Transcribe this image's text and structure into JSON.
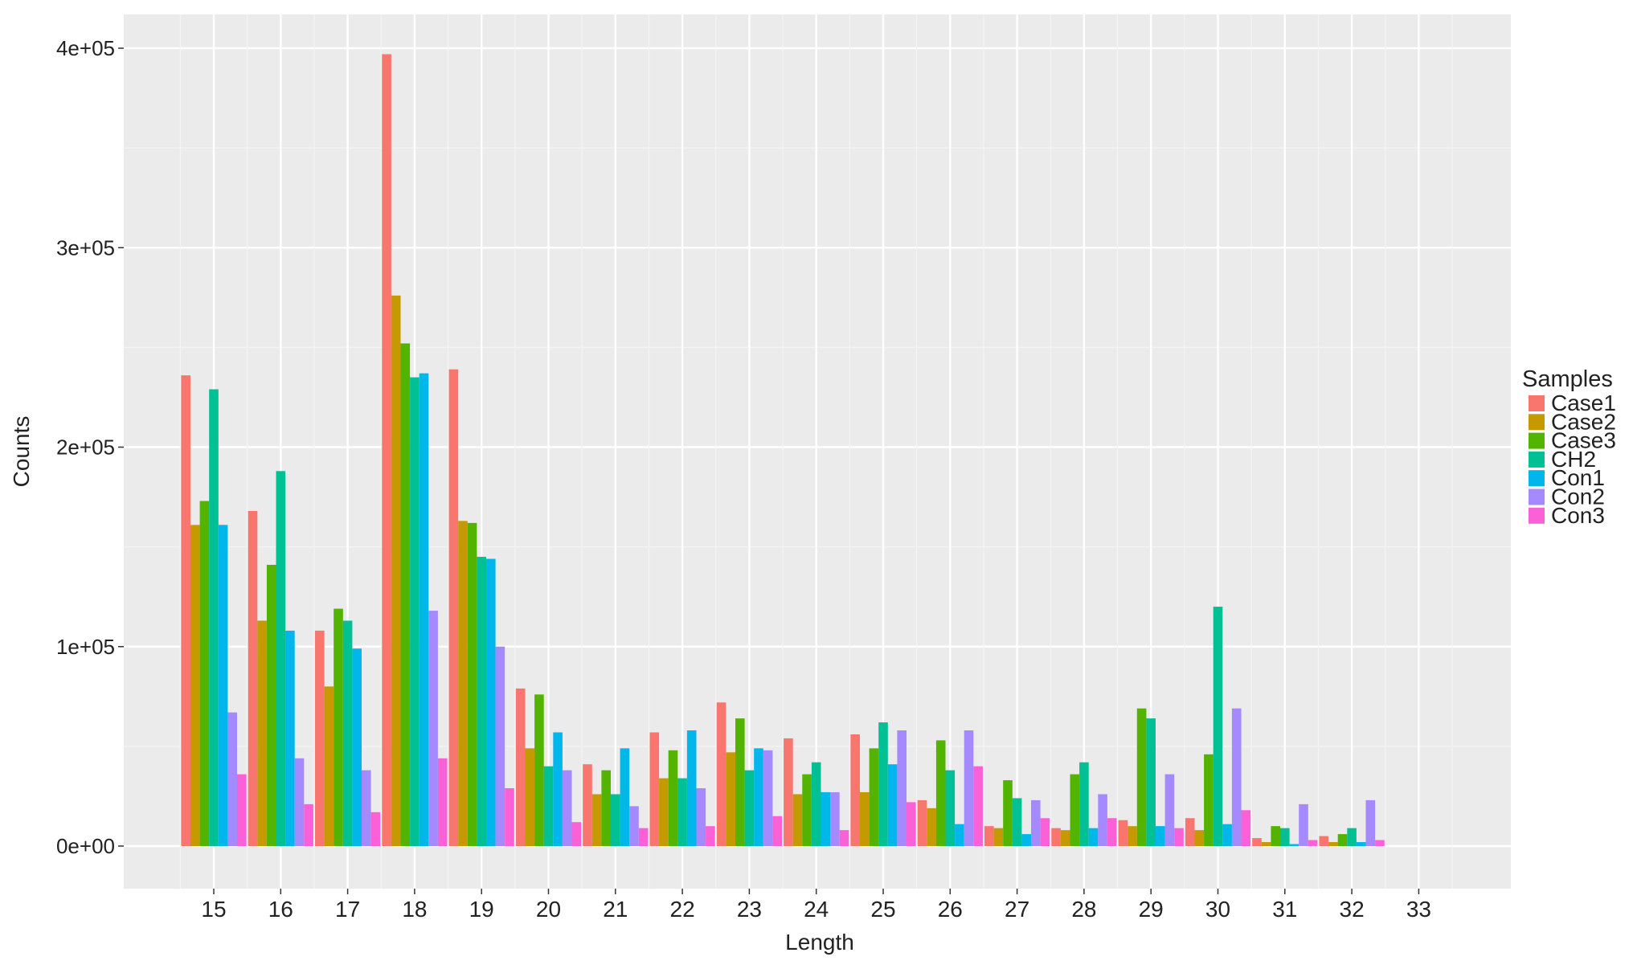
{
  "chart_data": {
    "type": "bar",
    "xlabel": "Length",
    "ylabel": "Counts",
    "legend_title": "Samples",
    "legend_position": "right",
    "grid": true,
    "ylim": [
      -20000,
      415000
    ],
    "yticks": [
      0,
      100000,
      200000,
      300000,
      400000
    ],
    "ytick_labels": [
      "0e+00",
      "1e+05",
      "2e+05",
      "3e+05",
      "4e+05"
    ],
    "categories": [
      "15",
      "16",
      "17",
      "18",
      "19",
      "20",
      "21",
      "22",
      "23",
      "24",
      "25",
      "26",
      "27",
      "28",
      "29",
      "30",
      "31",
      "32",
      "33"
    ],
    "series": [
      {
        "name": "Case1",
        "color": "#F8766D",
        "values": [
          236000,
          168000,
          108000,
          397000,
          239000,
          79000,
          41000,
          57000,
          72000,
          54000,
          56000,
          23000,
          10000,
          9000,
          13000,
          14000,
          4000,
          5000,
          0
        ]
      },
      {
        "name": "Case2",
        "color": "#C49A00",
        "values": [
          161000,
          113000,
          80000,
          276000,
          163000,
          49000,
          26000,
          34000,
          47000,
          26000,
          27000,
          19000,
          9000,
          8000,
          10000,
          8000,
          2000,
          2000,
          0
        ]
      },
      {
        "name": "Case3",
        "color": "#53B400",
        "values": [
          173000,
          141000,
          119000,
          252000,
          162000,
          76000,
          38000,
          48000,
          64000,
          36000,
          49000,
          53000,
          33000,
          36000,
          69000,
          46000,
          10000,
          6000,
          0
        ]
      },
      {
        "name": "CH2",
        "color": "#00C094",
        "values": [
          229000,
          188000,
          113000,
          235000,
          145000,
          40000,
          26000,
          34000,
          38000,
          42000,
          62000,
          38000,
          24000,
          42000,
          64000,
          120000,
          9000,
          9000,
          0
        ]
      },
      {
        "name": "Con1",
        "color": "#00B6EB",
        "values": [
          161000,
          108000,
          99000,
          237000,
          144000,
          57000,
          49000,
          58000,
          49000,
          27000,
          41000,
          11000,
          6000,
          9000,
          10000,
          11000,
          1000,
          2000,
          0
        ]
      },
      {
        "name": "Con2",
        "color": "#A58AFF",
        "values": [
          67000,
          44000,
          38000,
          118000,
          100000,
          38000,
          20000,
          29000,
          48000,
          27000,
          58000,
          58000,
          23000,
          26000,
          36000,
          69000,
          21000,
          23000,
          0
        ]
      },
      {
        "name": "Con3",
        "color": "#FB61D7",
        "values": [
          36000,
          21000,
          17000,
          44000,
          29000,
          12000,
          9000,
          10000,
          15000,
          8000,
          22000,
          40000,
          14000,
          14000,
          9000,
          18000,
          3000,
          3000,
          0
        ]
      }
    ]
  }
}
